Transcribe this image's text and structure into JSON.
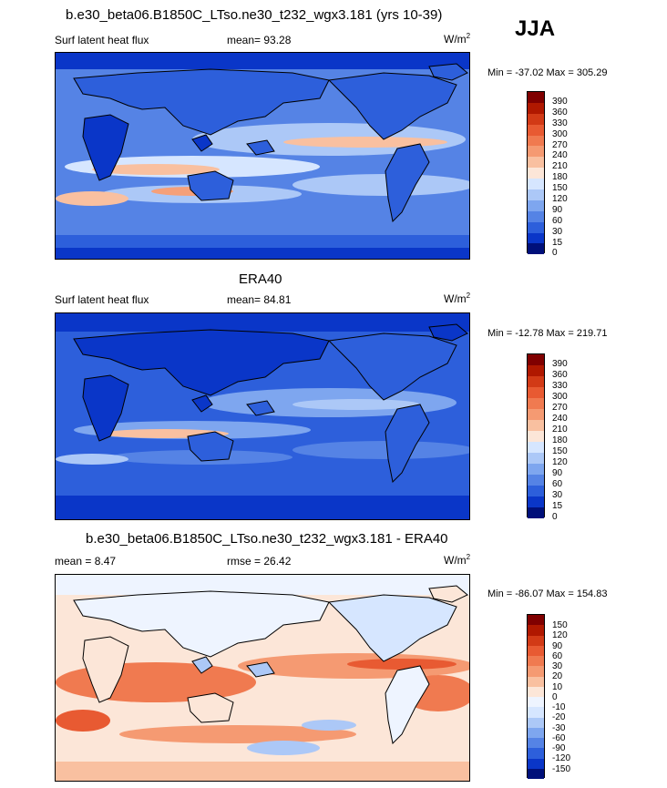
{
  "season": "JJA",
  "panels": [
    {
      "id": "model",
      "title": "b.e30_beta06.B1850C_LTso.ne30_t232_wgx3.181 (yrs 10-39)",
      "left_label": "Surf latent heat flux",
      "mean_label": "mean=  93.28",
      "units": "W/m",
      "units_exp": "2",
      "minmax": "Min = -37.02 Max = 305.29",
      "colorbar_ticks": [
        "390",
        "360",
        "330",
        "300",
        "270",
        "240",
        "210",
        "180",
        "150",
        "120",
        "90",
        "60",
        "30",
        "15",
        "0"
      ]
    },
    {
      "id": "obs",
      "title": "ERA40",
      "left_label": "Surf latent heat flux",
      "mean_label": "mean=  84.81",
      "units": "W/m",
      "units_exp": "2",
      "minmax": "Min = -12.78 Max = 219.71",
      "colorbar_ticks": [
        "390",
        "360",
        "330",
        "300",
        "270",
        "240",
        "210",
        "180",
        "150",
        "120",
        "90",
        "60",
        "30",
        "15",
        "0"
      ]
    },
    {
      "id": "diff",
      "title": "b.e30_beta06.B1850C_LTso.ne30_t232_wgx3.181 - ERA40",
      "left_label": "mean =   8.47",
      "mean_label": "rmse =  26.42",
      "units": "W/m",
      "units_exp": "2",
      "minmax": "Min = -86.07 Max = 154.83",
      "colorbar_ticks": [
        "150",
        "120",
        "90",
        "60",
        "30",
        "20",
        "10",
        "0",
        "-10",
        "-20",
        "-30",
        "-60",
        "-90",
        "-120",
        "-150"
      ]
    }
  ],
  "colors": {
    "abs_scale": [
      "#800000",
      "#b01800",
      "#d23a16",
      "#e85a32",
      "#f07a50",
      "#f59a72",
      "#f9c0a0",
      "#fce6d8",
      "#ffffff",
      "#d6e6ff",
      "#acc8f7",
      "#7ea6ef",
      "#5583e5",
      "#2d5fdb",
      "#0a36c8",
      "#00107a"
    ],
    "diff_scale": [
      "#800000",
      "#b01800",
      "#d23a16",
      "#e85a32",
      "#f07a50",
      "#f59a72",
      "#f9c0a0",
      "#fce6d8",
      "#eef4ff",
      "#d6e6ff",
      "#acc8f7",
      "#7ea6ef",
      "#5583e5",
      "#2d5fdb",
      "#0a36c8",
      "#00107a"
    ],
    "land_outline": "#000000"
  },
  "chart_data": [
    {
      "type": "heatmap",
      "panel": "model",
      "variable": "Surf latent heat flux",
      "units": "W/m2",
      "levels": [
        0,
        15,
        30,
        60,
        90,
        120,
        150,
        180,
        210,
        240,
        270,
        300,
        330,
        360,
        390
      ],
      "mean": 93.28,
      "min": -37.02,
      "max": 305.29
    },
    {
      "type": "heatmap",
      "panel": "obs",
      "variable": "Surf latent heat flux",
      "units": "W/m2",
      "levels": [
        0,
        15,
        30,
        60,
        90,
        120,
        150,
        180,
        210,
        240,
        270,
        300,
        330,
        360,
        390
      ],
      "mean": 84.81,
      "min": -12.78,
      "max": 219.71
    },
    {
      "type": "heatmap",
      "panel": "diff",
      "units": "W/m2",
      "levels": [
        -150,
        -120,
        -90,
        -60,
        -30,
        -20,
        -10,
        0,
        10,
        20,
        30,
        60,
        90,
        120,
        150
      ],
      "mean": 8.47,
      "rmse": 26.42,
      "min": -86.07,
      "max": 154.83
    }
  ]
}
